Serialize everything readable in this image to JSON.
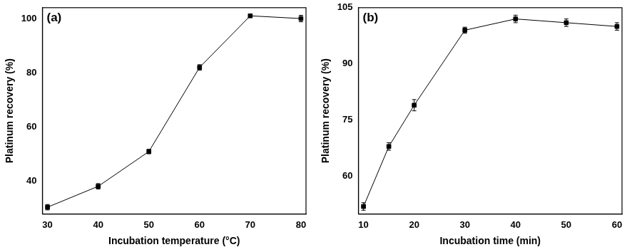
{
  "chart_data": [
    {
      "type": "line",
      "title": "(a)",
      "x_label": "Incubation temperature (°C)",
      "y_label": "Platinum recovery (%)",
      "x": [
        30,
        40,
        50,
        60,
        70,
        80
      ],
      "values": [
        30.5,
        38.2,
        51,
        82,
        101,
        100
      ],
      "errors": [
        1,
        1,
        0.8,
        1,
        0.5,
        1.2
      ],
      "color": "#000000",
      "marker": "square",
      "line_style": "solid",
      "xlim": [
        29,
        81
      ],
      "xticks": [
        30,
        40,
        50,
        60,
        70,
        80
      ],
      "ylim": [
        28,
        104
      ],
      "yticks": [
        40,
        60,
        80,
        100
      ],
      "grid": false
    },
    {
      "type": "line",
      "title": "(b)",
      "x_label": "Incubation time (min)",
      "y_label": "Platinum recovery (%)",
      "x": [
        10,
        15,
        20,
        30,
        40,
        50,
        60
      ],
      "values": [
        52,
        68,
        79,
        99,
        102,
        101,
        100
      ],
      "errors": [
        1,
        1,
        1.5,
        0.8,
        1,
        1,
        1
      ],
      "color": "#000000",
      "marker": "square",
      "line_style": "solid",
      "xlim": [
        9,
        61
      ],
      "xticks": [
        10,
        20,
        30,
        40,
        50,
        60
      ],
      "ylim": [
        50,
        105
      ],
      "yticks": [
        60,
        75,
        90,
        105
      ],
      "grid": false
    }
  ]
}
